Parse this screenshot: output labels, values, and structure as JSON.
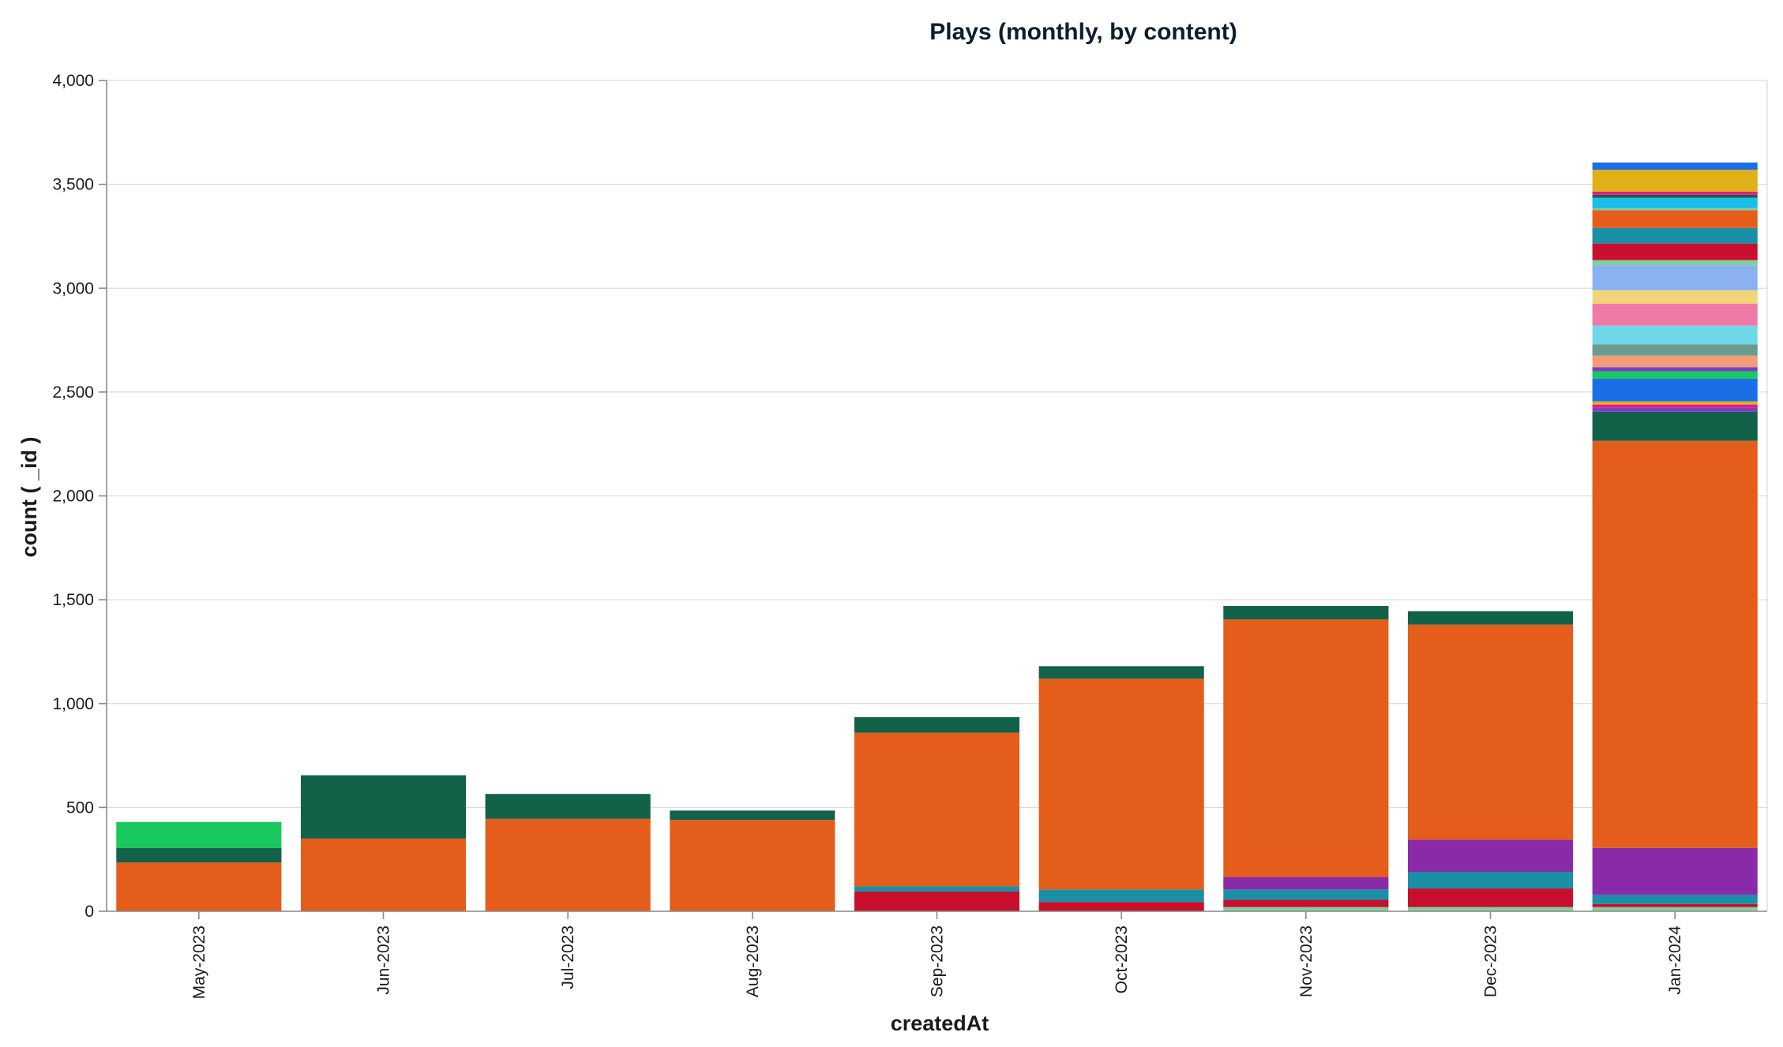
{
  "chart_data": {
    "type": "bar",
    "stacked": true,
    "title": "Plays (monthly, by content)",
    "xlabel": "createdAt",
    "ylabel": "count ( _id )",
    "ylim": [
      0,
      4000
    ],
    "yticks": [
      0,
      500,
      1000,
      1500,
      2000,
      2500,
      3000,
      3500,
      4000
    ],
    "ytick_labels": [
      "0",
      "500",
      "1,000",
      "1,500",
      "2,000",
      "2,500",
      "3,000",
      "3,500",
      "4,000"
    ],
    "grid": true,
    "legend": "none",
    "categories": [
      "May-2023",
      "Jun-2023",
      "Jul-2023",
      "Aug-2023",
      "Sep-2023",
      "Oct-2023",
      "Nov-2023",
      "Dec-2023",
      "Jan-2024"
    ],
    "series": [
      {
        "color": "#7fcf9c",
        "values": [
          0,
          0,
          0,
          0,
          0,
          0,
          20,
          20,
          20
        ]
      },
      {
        "color": "#c8102e",
        "values": [
          0,
          0,
          0,
          0,
          95,
          45,
          35,
          90,
          15
        ]
      },
      {
        "color": "#1a8fa5",
        "values": [
          0,
          0,
          0,
          0,
          25,
          60,
          50,
          80,
          45
        ]
      },
      {
        "color": "#8a2aa8",
        "values": [
          0,
          0,
          0,
          0,
          0,
          0,
          60,
          155,
          225
        ]
      },
      {
        "color": "#e55d1b",
        "values": [
          235,
          350,
          445,
          440,
          740,
          1015,
          1240,
          1035,
          1960
        ]
      },
      {
        "color": "#126149",
        "values": [
          70,
          305,
          120,
          45,
          75,
          60,
          65,
          65,
          140
        ]
      },
      {
        "color": "#1ac95e",
        "values": [
          125,
          0,
          0,
          0,
          0,
          0,
          0,
          0,
          0
        ]
      },
      {
        "color": "#7a3fc4",
        "values": [
          0,
          0,
          0,
          0,
          0,
          0,
          0,
          0,
          20
        ]
      },
      {
        "color": "#e5188c",
        "values": [
          0,
          0,
          0,
          0,
          0,
          0,
          0,
          0,
          15
        ]
      },
      {
        "color": "#e0b018",
        "values": [
          0,
          0,
          0,
          0,
          0,
          0,
          0,
          0,
          15
        ]
      },
      {
        "color": "#1a6fe6",
        "values": [
          0,
          0,
          0,
          0,
          0,
          0,
          0,
          0,
          110
        ]
      },
      {
        "color": "#1ac95e",
        "values": [
          0,
          0,
          0,
          0,
          0,
          0,
          0,
          0,
          35
        ]
      },
      {
        "color": "#7a3fc4",
        "values": [
          0,
          0,
          0,
          0,
          0,
          0,
          0,
          0,
          20
        ]
      },
      {
        "color": "#f29c78",
        "values": [
          0,
          0,
          0,
          0,
          0,
          0,
          0,
          0,
          55
        ]
      },
      {
        "color": "#6a9c8e",
        "values": [
          0,
          0,
          0,
          0,
          0,
          0,
          0,
          0,
          55
        ]
      },
      {
        "color": "#6fd8e8",
        "values": [
          0,
          0,
          0,
          0,
          0,
          0,
          0,
          0,
          90
        ]
      },
      {
        "color": "#ef7aa8",
        "values": [
          0,
          0,
          0,
          0,
          0,
          0,
          0,
          0,
          105
        ]
      },
      {
        "color": "#f2d57a",
        "values": [
          0,
          0,
          0,
          0,
          0,
          0,
          0,
          0,
          65
        ]
      },
      {
        "color": "#8ab2f0",
        "values": [
          0,
          0,
          0,
          0,
          0,
          0,
          0,
          0,
          120
        ]
      },
      {
        "color": "#7fcf9c",
        "values": [
          0,
          0,
          0,
          0,
          0,
          0,
          0,
          0,
          25
        ]
      },
      {
        "color": "#c8102e",
        "values": [
          0,
          0,
          0,
          0,
          0,
          0,
          0,
          0,
          80
        ]
      },
      {
        "color": "#1a8fa5",
        "values": [
          0,
          0,
          0,
          0,
          0,
          0,
          0,
          0,
          75
        ]
      },
      {
        "color": "#e55d1b",
        "values": [
          0,
          0,
          0,
          0,
          0,
          0,
          0,
          0,
          85
        ]
      },
      {
        "color": "#7fcf9c",
        "values": [
          0,
          0,
          0,
          0,
          0,
          0,
          0,
          0,
          10
        ]
      },
      {
        "color": "#1abfe8",
        "values": [
          0,
          0,
          0,
          0,
          0,
          0,
          0,
          0,
          50
        ]
      },
      {
        "color": "#126149",
        "values": [
          0,
          0,
          0,
          0,
          0,
          0,
          0,
          0,
          15
        ]
      },
      {
        "color": "#e5188c",
        "values": [
          0,
          0,
          0,
          0,
          0,
          0,
          0,
          0,
          15
        ]
      },
      {
        "color": "#e0b018",
        "values": [
          0,
          0,
          0,
          0,
          0,
          0,
          0,
          0,
          105
        ]
      },
      {
        "color": "#1a6fe6",
        "values": [
          0,
          0,
          0,
          0,
          0,
          0,
          0,
          0,
          35
        ]
      }
    ]
  }
}
